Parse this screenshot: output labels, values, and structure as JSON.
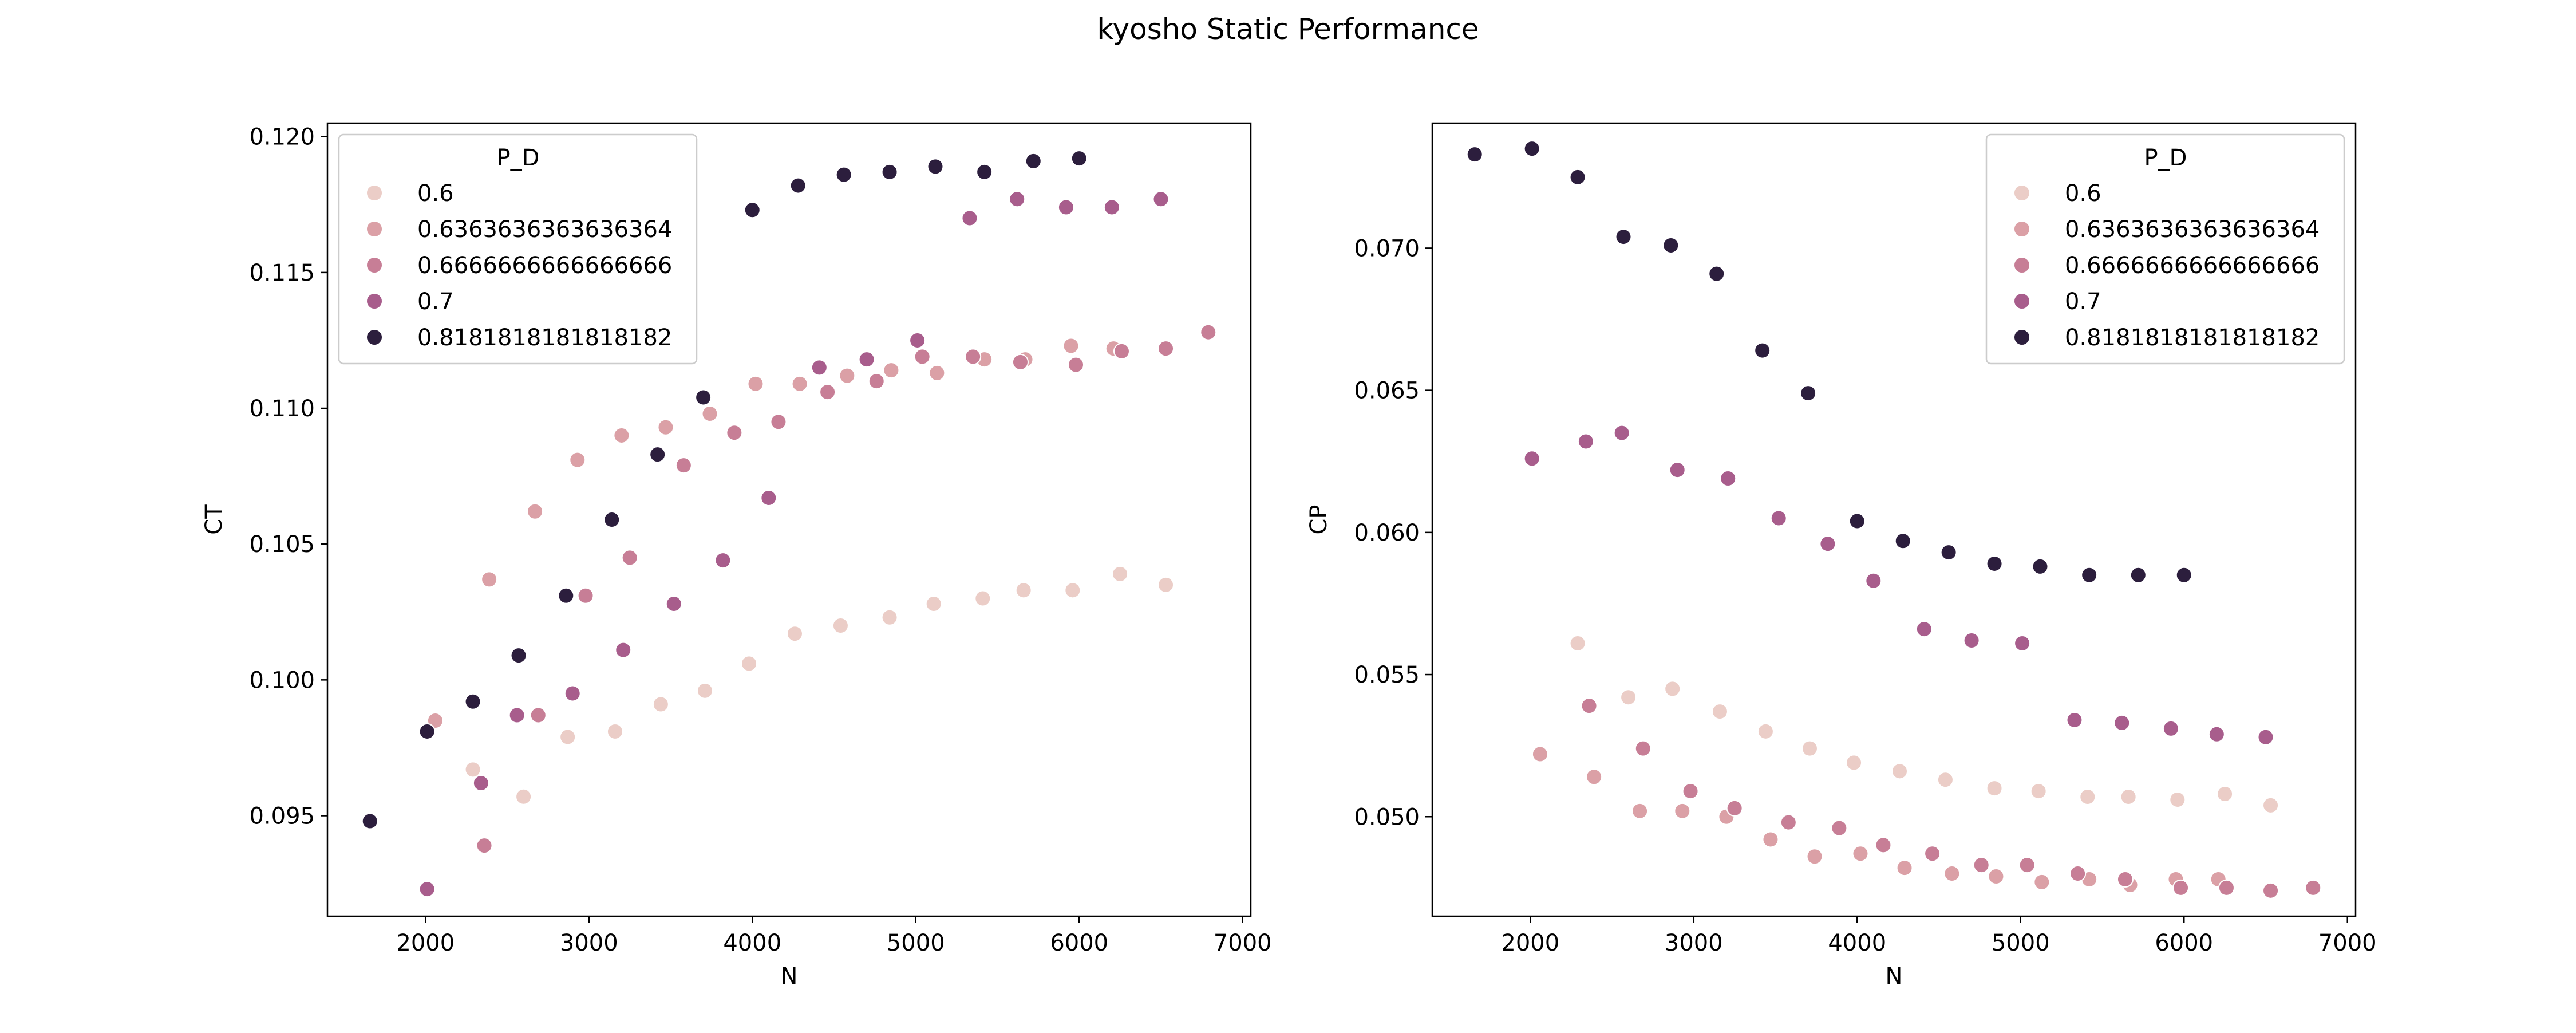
{
  "figure": {
    "title": "kyosho Static Performance"
  },
  "chart_data": [
    {
      "type": "scatter",
      "xlabel": "N",
      "ylabel": "CT",
      "xlim": [
        1400,
        7050
      ],
      "ylim": [
        0.0913,
        0.1205
      ],
      "xticks": [
        2000,
        3000,
        4000,
        5000,
        6000,
        7000
      ],
      "yticks": [
        0.095,
        0.1,
        0.105,
        0.11,
        0.115,
        0.12
      ],
      "yticklabels": [
        "0.095",
        "0.100",
        "0.105",
        "0.110",
        "0.115",
        "0.120"
      ],
      "grid": false,
      "legend": {
        "title": "P_D",
        "placement": "upper left"
      },
      "series": [
        {
          "name": "0.6",
          "color": "#ebcdc7",
          "x": [
            2290,
            2600,
            2870,
            3160,
            3440,
            3710,
            3980,
            4260,
            4540,
            4840,
            5110,
            5410,
            5660,
            5960,
            6250,
            6530
          ],
          "y": [
            0.0967,
            0.0957,
            0.0979,
            0.0981,
            0.0991,
            0.0996,
            0.1006,
            0.1017,
            0.102,
            0.1023,
            0.1028,
            0.103,
            0.1033,
            0.1033,
            0.1039,
            0.1035
          ]
        },
        {
          "name": "0.6363636363636364",
          "color": "#dba0a6",
          "x": [
            2060,
            2390,
            2670,
            2930,
            3200,
            3470,
            3740,
            4020,
            4290,
            4580,
            4850,
            5130,
            5420,
            5670,
            5950,
            6210
          ],
          "y": [
            0.0985,
            0.1037,
            0.1062,
            0.1081,
            0.109,
            0.1093,
            0.1098,
            0.1109,
            0.1109,
            0.1112,
            0.1114,
            0.1113,
            0.1118,
            0.1118,
            0.1123,
            0.1122
          ]
        },
        {
          "name": "0.6666666666666666",
          "color": "#c77e96",
          "x": [
            2360,
            2690,
            2980,
            3250,
            3580,
            3890,
            4160,
            4460,
            4760,
            5040,
            5350,
            5640,
            5980,
            6260,
            6530,
            6790
          ],
          "y": [
            0.0939,
            0.0987,
            0.1031,
            0.1045,
            0.1079,
            0.1091,
            0.1095,
            0.1106,
            0.111,
            0.1119,
            0.1119,
            0.1117,
            0.1116,
            0.1121,
            0.1122,
            0.1128
          ]
        },
        {
          "name": "0.7",
          "color": "#a85d8c",
          "x": [
            2010,
            2340,
            2560,
            2900,
            3210,
            3520,
            3820,
            4100,
            4410,
            4700,
            5010,
            5330,
            5620,
            5920,
            6200,
            6500
          ],
          "y": [
            0.0923,
            0.0962,
            0.0987,
            0.0995,
            0.1011,
            0.1028,
            0.1044,
            0.1067,
            0.1115,
            0.1118,
            0.1125,
            0.117,
            0.1177,
            0.1174,
            0.1174,
            0.1177
          ]
        },
        {
          "name": "0.8181818181818182",
          "color": "#2c1e3d",
          "x": [
            1660,
            2010,
            2290,
            2570,
            2860,
            3140,
            3420,
            3700,
            4000,
            4280,
            4560,
            4840,
            5120,
            5420,
            5720,
            6000
          ],
          "y": [
            0.0948,
            0.0981,
            0.0992,
            0.1009,
            0.1031,
            0.1059,
            0.1083,
            0.1104,
            0.1173,
            0.1182,
            0.1186,
            0.1187,
            0.1189,
            0.1187,
            0.1191,
            0.1192
          ]
        }
      ]
    },
    {
      "type": "scatter",
      "xlabel": "N",
      "ylabel": "CP",
      "xlim": [
        1400,
        7050
      ],
      "ylim": [
        0.0465,
        0.0744
      ],
      "xticks": [
        2000,
        3000,
        4000,
        5000,
        6000,
        7000
      ],
      "yticks": [
        0.05,
        0.055,
        0.06,
        0.065,
        0.07
      ],
      "yticklabels": [
        "0.050",
        "0.055",
        "0.060",
        "0.065",
        "0.070"
      ],
      "grid": false,
      "legend": {
        "title": "P_D",
        "placement": "upper right"
      },
      "series": [
        {
          "name": "0.6",
          "color": "#ebcdc7",
          "x": [
            2290,
            2600,
            2870,
            3160,
            3440,
            3710,
            3980,
            4260,
            4540,
            4840,
            5110,
            5410,
            5660,
            5960,
            6250,
            6530
          ],
          "y": [
            0.0561,
            0.0542,
            0.0545,
            0.0537,
            0.053,
            0.0524,
            0.0519,
            0.0516,
            0.0513,
            0.051,
            0.0509,
            0.0507,
            0.0507,
            0.0506,
            0.0508,
            0.0504
          ]
        },
        {
          "name": "0.6363636363636364",
          "color": "#dba0a6",
          "x": [
            2060,
            2390,
            2670,
            2930,
            3200,
            3470,
            3740,
            4020,
            4290,
            4580,
            4850,
            5130,
            5420,
            5670,
            5950,
            6210
          ],
          "y": [
            0.0522,
            0.0514,
            0.0502,
            0.0502,
            0.05,
            0.0492,
            0.0486,
            0.0487,
            0.0482,
            0.048,
            0.0479,
            0.0477,
            0.0478,
            0.0476,
            0.0478,
            0.0478
          ]
        },
        {
          "name": "0.6666666666666666",
          "color": "#c77e96",
          "x": [
            2360,
            2690,
            2980,
            3250,
            3580,
            3890,
            4160,
            4460,
            4760,
            5040,
            5350,
            5640,
            5980,
            6260,
            6530,
            6790
          ],
          "y": [
            0.0539,
            0.0524,
            0.0509,
            0.0503,
            0.0498,
            0.0496,
            0.049,
            0.0487,
            0.0483,
            0.0483,
            0.048,
            0.0478,
            0.0475,
            0.0475,
            0.0474,
            0.0475
          ]
        },
        {
          "name": "0.7",
          "color": "#a85d8c",
          "x": [
            2010,
            2340,
            2560,
            2900,
            3210,
            3520,
            3820,
            4100,
            4410,
            4700,
            5010,
            5330,
            5620,
            5920,
            6200,
            6500
          ],
          "y": [
            0.0626,
            0.0632,
            0.0635,
            0.0622,
            0.0619,
            0.0605,
            0.0596,
            0.0583,
            0.0566,
            0.0562,
            0.0561,
            0.0534,
            0.0533,
            0.0531,
            0.0529,
            0.0528
          ]
        },
        {
          "name": "0.8181818181818182",
          "color": "#2c1e3d",
          "x": [
            1660,
            2010,
            2290,
            2570,
            2860,
            3140,
            3420,
            3700,
            4000,
            4280,
            4560,
            4840,
            5120,
            5420,
            5720,
            6000
          ],
          "y": [
            0.0733,
            0.0735,
            0.0725,
            0.0704,
            0.0701,
            0.0691,
            0.0664,
            0.0649,
            0.0604,
            0.0597,
            0.0593,
            0.0589,
            0.0588,
            0.0585,
            0.0585,
            0.0585
          ]
        }
      ]
    }
  ]
}
